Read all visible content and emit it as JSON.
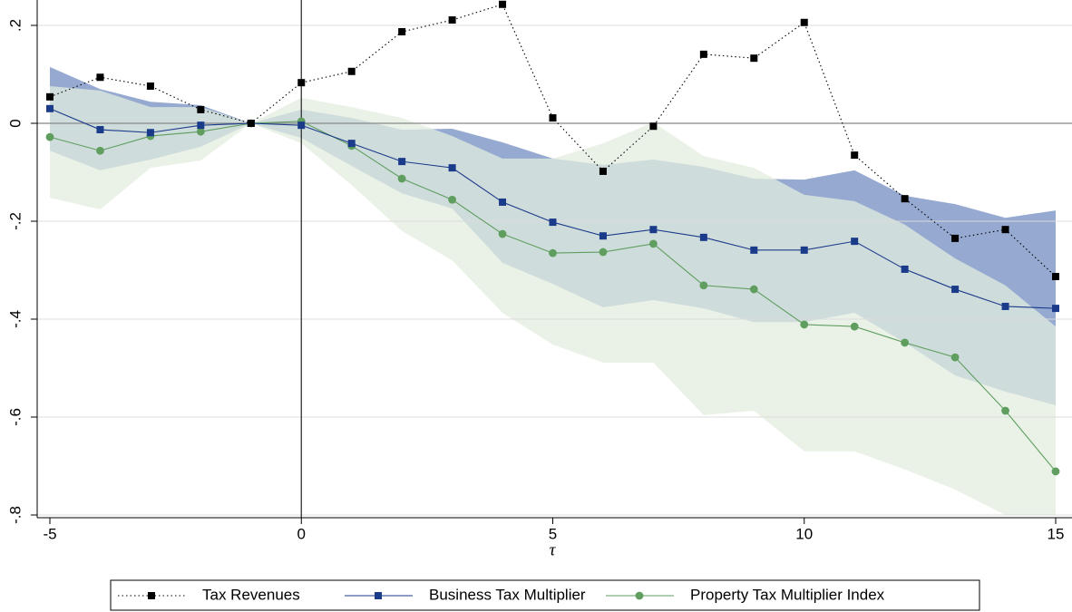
{
  "chart_data": {
    "type": "line",
    "x_label": "τ",
    "x": [
      -5,
      -4,
      -3,
      -2,
      -1,
      0,
      1,
      2,
      3,
      4,
      5,
      6,
      7,
      8,
      9,
      10,
      11,
      12,
      13,
      14,
      15
    ],
    "xlim": [
      -5,
      15
    ],
    "xticks": [
      -5,
      0,
      5,
      10,
      15
    ],
    "ylim": [
      -0.8,
      0.25
    ],
    "yticks": [
      {
        "value": 0.2,
        "label": ".2"
      },
      0,
      {
        "value": -0.2,
        "label": "-.2"
      },
      {
        "value": -0.4,
        "label": "-.4"
      },
      {
        "value": -0.6,
        "label": "-.6"
      },
      {
        "value": -0.8,
        "label": "-.8"
      }
    ],
    "grid": true,
    "xline": 0,
    "yline": 0,
    "legend": "bottom",
    "series": [
      {
        "name": "Tax Revenues",
        "color": "#000000",
        "marker": "square",
        "dash": "dotted",
        "values": [
          0.054,
          0.094,
          0.076,
          0.028,
          0,
          0.083,
          0.106,
          0.187,
          0.211,
          0.243,
          0.011,
          -0.098,
          -0.006,
          0.141,
          0.133,
          0.206,
          -0.065,
          -0.154,
          -0.235,
          -0.217,
          -0.313
        ]
      },
      {
        "name": "Business Tax Multiplier",
        "color": "#1a3a8a",
        "marker": "square",
        "dash": "solid",
        "band_color": "#7b93c6",
        "values": [
          0.03,
          -0.013,
          -0.019,
          -0.004,
          0,
          -0.004,
          -0.041,
          -0.078,
          -0.091,
          -0.161,
          -0.202,
          -0.23,
          -0.217,
          -0.233,
          -0.259,
          -0.259,
          -0.241,
          -0.298,
          -0.339,
          -0.374,
          -0.378
        ],
        "upper": [
          0.115,
          0.07,
          0.044,
          0.037,
          0,
          0.028,
          0.011,
          -0.013,
          -0.011,
          -0.039,
          -0.072,
          -0.085,
          -0.074,
          -0.089,
          -0.113,
          -0.115,
          -0.096,
          -0.148,
          -0.165,
          -0.193,
          -0.178
        ],
        "lower": [
          -0.056,
          -0.096,
          -0.074,
          -0.048,
          0,
          -0.03,
          -0.087,
          -0.143,
          -0.174,
          -0.285,
          -0.328,
          -0.376,
          -0.361,
          -0.378,
          -0.406,
          -0.406,
          -0.387,
          -0.448,
          -0.515,
          -0.548,
          -0.576
        ]
      },
      {
        "name": "Property Tax Multiplier Index",
        "color": "#5f9e5f",
        "marker": "circle",
        "dash": "solid",
        "band_color": "#e3eedf",
        "values": [
          -0.028,
          -0.056,
          -0.026,
          -0.017,
          0,
          0.004,
          -0.046,
          -0.113,
          -0.156,
          -0.226,
          -0.265,
          -0.263,
          -0.246,
          -0.331,
          -0.339,
          -0.411,
          -0.415,
          -0.448,
          -0.478,
          -0.587,
          -0.711
        ],
        "upper": [
          0.076,
          0.067,
          0.033,
          0.033,
          0,
          0.052,
          0.033,
          0.011,
          -0.026,
          -0.072,
          -0.072,
          -0.041,
          0.002,
          -0.067,
          -0.091,
          -0.146,
          -0.159,
          -0.207,
          -0.276,
          -0.331,
          -0.415
        ],
        "lower": [
          -0.152,
          -0.176,
          -0.091,
          -0.076,
          0,
          -0.041,
          -0.126,
          -0.22,
          -0.28,
          -0.387,
          -0.452,
          -0.489,
          -0.489,
          -0.596,
          -0.587,
          -0.67,
          -0.67,
          -0.707,
          -0.748,
          -0.8,
          -0.8
        ]
      }
    ]
  }
}
